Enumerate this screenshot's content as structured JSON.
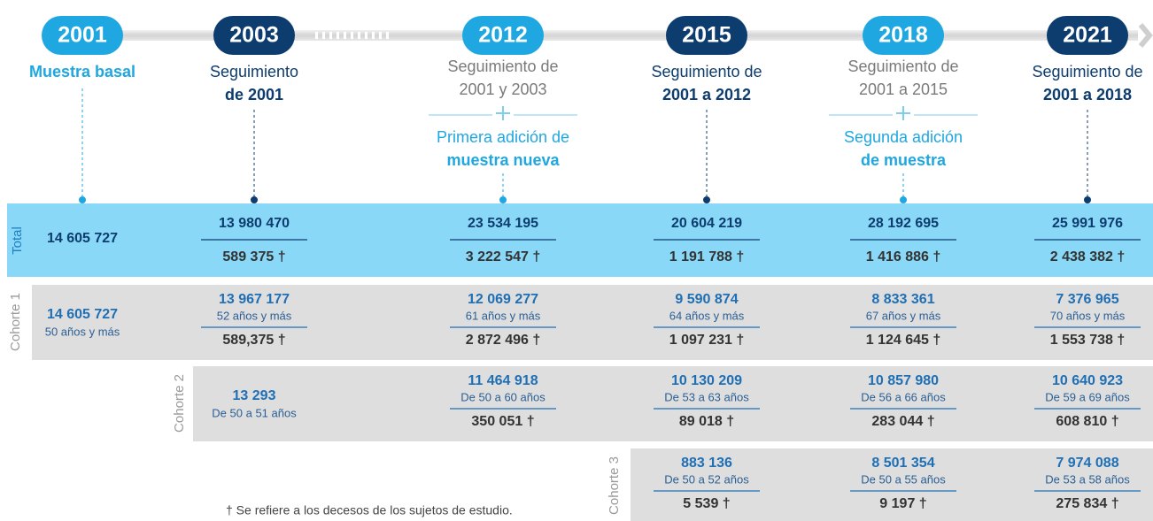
{
  "headers": [
    {
      "year": "2001",
      "baseline": [
        "Muestra basal"
      ]
    },
    {
      "year": "2003",
      "follow_up": [
        "Seguimiento",
        "de 2001"
      ]
    },
    {
      "year": "2012",
      "follow_up": [
        "Seguimiento de",
        "2001 y 2003"
      ],
      "addition": [
        "Primera adición de",
        "muestra nueva"
      ]
    },
    {
      "year": "2015",
      "follow_up": [
        "Seguimiento de",
        "2001 a 2012"
      ]
    },
    {
      "year": "2018",
      "follow_up": [
        "Seguimiento de",
        "2001 a 2015"
      ],
      "addition": [
        "Segunda adición",
        "de muestra"
      ]
    },
    {
      "year": "2021",
      "follow_up": [
        "Seguimiento de",
        "2001 a 2018"
      ]
    }
  ],
  "rows": [
    {
      "label": "Total",
      "cells": [
        {
          "value": "14 605 727"
        },
        {
          "value": "13 980 470",
          "deaths": "589 375 †"
        },
        {
          "value": "23 534 195",
          "deaths": "3 222 547 †"
        },
        {
          "value": "20 604 219",
          "deaths": "1 191 788 †"
        },
        {
          "value": "28 192 695",
          "deaths": "1 416 886 †"
        },
        {
          "value": "25 991 976",
          "deaths": "2 438 382 †"
        }
      ]
    },
    {
      "label": "Cohorte 1",
      "cells": [
        {
          "value": "14 605 727",
          "age": "50 años y más"
        },
        {
          "value": "13 967 177",
          "age": "52 años y más",
          "deaths": "589,375 †"
        },
        {
          "value": "12 069 277",
          "age": "61 años y más",
          "deaths": "2 872 496 †"
        },
        {
          "value": "9 590 874",
          "age": "64 años y más",
          "deaths": "1 097 231 †"
        },
        {
          "value": "8 833 361",
          "age": "67 años y más",
          "deaths": "1 124 645 †"
        },
        {
          "value": "7 376 965",
          "age": "70 años y más",
          "deaths": "1 553 738 †"
        }
      ]
    },
    {
      "label": "Cohorte 2",
      "cells": [
        null,
        {
          "value": "13 293",
          "age": "De 50 a 51 años"
        },
        {
          "value": "11 464 918",
          "age": "De 50 a 60 años",
          "deaths": "350 051 †"
        },
        {
          "value": "10 130 209",
          "age": "De 53 a 63 años",
          "deaths": "89 018 †"
        },
        {
          "value": "10 857 980",
          "age": "De 56 a 66 años",
          "deaths": "283 044 †"
        },
        {
          "value": "10 640 923",
          "age": "De 59 a 69 años",
          "deaths": "608 810 †"
        }
      ]
    },
    {
      "label": "Cohorte 3",
      "cells": [
        null,
        null,
        null,
        {
          "value": "883 136",
          "age": "De 50 a 52 años",
          "deaths": "5 539 †"
        },
        {
          "value": "8 501 354",
          "age": "De 50 a 55 años",
          "deaths": "9 197 †"
        },
        {
          "value": "7 974 088",
          "age": "De 53 a 58 años",
          "deaths": "275 834 †"
        }
      ]
    }
  ],
  "footnote": "† Se refiere a los decesos de los sujetos de estudio."
}
